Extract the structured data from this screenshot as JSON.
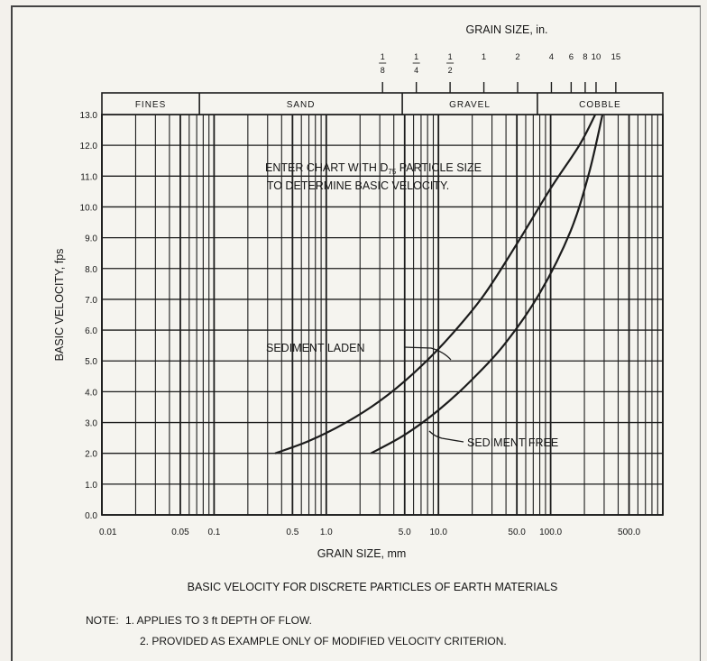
{
  "top_axis": {
    "title": "GRAIN SIZE, in.",
    "ticks": [
      {
        "value": 0.125,
        "num": "1",
        "den": "8"
      },
      {
        "value": 0.25,
        "num": "1",
        "den": "4"
      },
      {
        "value": 0.5,
        "num": "1",
        "den": "2"
      },
      {
        "value": 1,
        "label": "1"
      },
      {
        "value": 2,
        "label": "2"
      },
      {
        "value": 4,
        "label": "4"
      },
      {
        "value": 6,
        "label": "6"
      },
      {
        "value": 8,
        "label": "8"
      },
      {
        "value": 10,
        "label": "10"
      },
      {
        "value": 15,
        "label": "15"
      }
    ]
  },
  "classes": [
    {
      "label": "FINES",
      "from": 0.01,
      "to": 0.074
    },
    {
      "label": "SAND",
      "from": 0.074,
      "to": 4.76
    },
    {
      "label": "GRAVEL",
      "from": 4.76,
      "to": 76.2
    },
    {
      "label": "COBBLE",
      "from": 76.2,
      "to": 1000
    }
  ],
  "annotation": {
    "line1": "ENTER CHART WITH D",
    "sub": "75",
    "line1_end": " PARTICLE SIZE",
    "line2": "TO DETERMINE BASIC VELOCITY."
  },
  "footer": {
    "caption": "BASIC VELOCITY FOR DISCRETE PARTICLES OF EARTH MATERIALS",
    "note_label": "NOTE:",
    "note1": "1.  APPLIES TO 3 ft DEPTH OF FLOW.",
    "note2": "2.  PROVIDED AS EXAMPLE ONLY OF MODIFIED VELOCITY CRITERION."
  },
  "chart_data": {
    "type": "line",
    "xlabel": "GRAIN SIZE, mm",
    "ylabel": "BASIC VELOCITY, fps",
    "x_scale": "log",
    "xlim": [
      0.01,
      1000
    ],
    "ylim": [
      0,
      13
    ],
    "grid": true,
    "x_ticks": [
      {
        "value": 0.01,
        "label": "0.01"
      },
      {
        "value": 0.05,
        "label": "0.05"
      },
      {
        "value": 0.1,
        "label": "0.1"
      },
      {
        "value": 0.5,
        "label": "0.5"
      },
      {
        "value": 1,
        "label": "1.0"
      },
      {
        "value": 5,
        "label": "5.0"
      },
      {
        "value": 10,
        "label": "10.0"
      },
      {
        "value": 50,
        "label": "50.0"
      },
      {
        "value": 100,
        "label": "100.0"
      },
      {
        "value": 500,
        "label": "500.0"
      }
    ],
    "y_ticks": [
      "0.0",
      "1.0",
      "2.0",
      "3.0",
      "4.0",
      "5.0",
      "6.0",
      "7.0",
      "8.0",
      "9.0",
      "10.0",
      "11.0",
      "12.0",
      "13.0"
    ],
    "series": [
      {
        "name": "SEDIMENT LADEN",
        "x": [
          0.35,
          0.7,
          1.5,
          3,
          6,
          12,
          25,
          50,
          100,
          180,
          250
        ],
        "y": [
          2.0,
          2.4,
          3.0,
          3.7,
          4.6,
          5.7,
          7.1,
          8.8,
          10.6,
          12.0,
          13.0
        ]
      },
      {
        "name": "SEDIMENT FREE",
        "x": [
          2.5,
          5,
          10,
          20,
          40,
          80,
          150,
          220,
          290
        ],
        "y": [
          2.0,
          2.6,
          3.4,
          4.4,
          5.6,
          7.2,
          9.2,
          11.1,
          13.0
        ]
      }
    ]
  }
}
